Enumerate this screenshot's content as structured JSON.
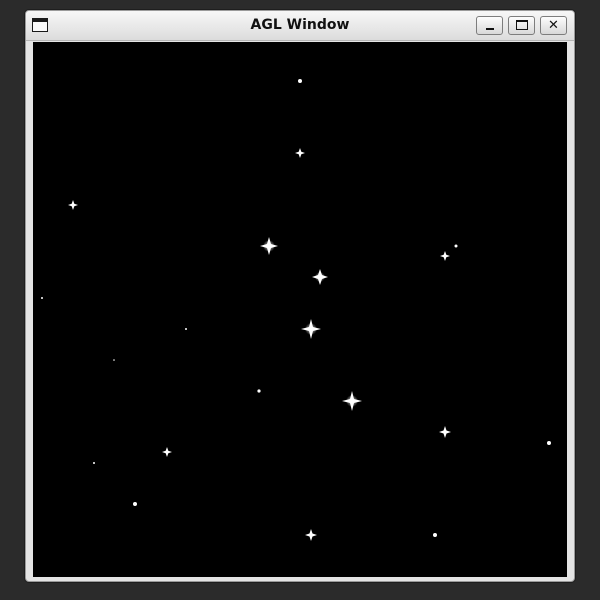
{
  "window": {
    "title": "AGL Window",
    "menu_icon": "window-menu-icon",
    "minimize_icon": "minimize-icon",
    "maximize_icon": "maximize-icon",
    "close_icon": "close-icon",
    "close_glyph": "✕"
  },
  "canvas": {
    "background": "#000000",
    "star_color": "#ffffff"
  }
}
